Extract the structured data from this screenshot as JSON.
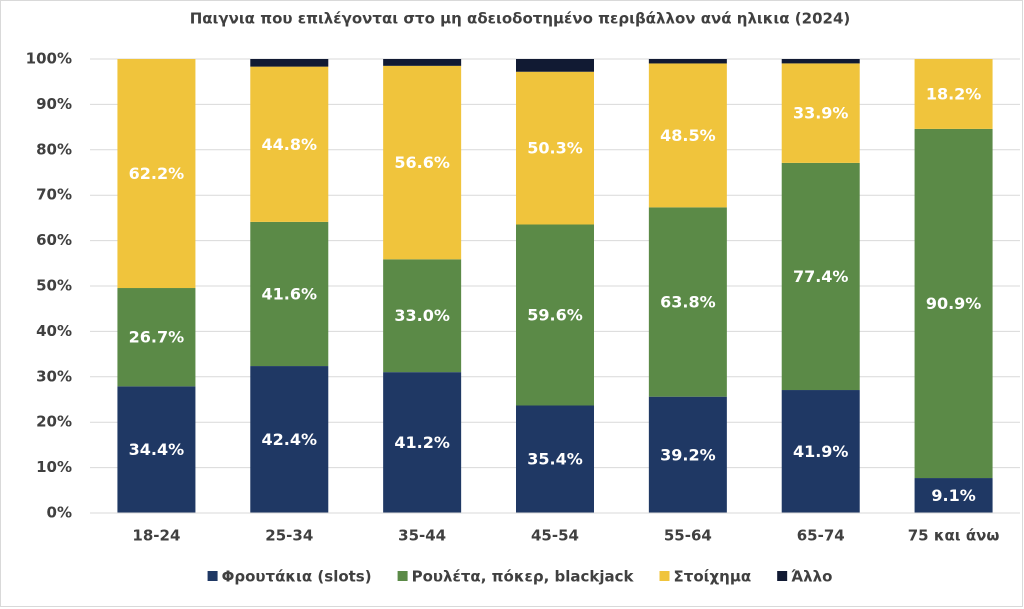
{
  "chart_data": {
    "type": "bar",
    "stacked": true,
    "normalized": true,
    "title": "Παιγνια που επιλέγονται στο μη αδειοδοτημένο περιβάλλον ανά ηλικια (2024)",
    "categories": [
      "18-24",
      "25-34",
      "35-44",
      "45-54",
      "55-64",
      "65-74",
      "75 και άνω"
    ],
    "series": [
      {
        "name": "Φρουτάκια (slots)",
        "color": "#1f3864",
        "values": [
          34.4,
          42.4,
          41.2,
          35.4,
          39.2,
          41.9,
          9.1
        ],
        "value_labels": [
          "34.4%",
          "42.4%",
          "41.2%",
          "35.4%",
          "39.2%",
          "41.9%",
          "9.1%"
        ]
      },
      {
        "name": "Ρουλέτα, πόκερ, blackjack",
        "color": "#5b8a47",
        "values": [
          26.7,
          41.6,
          33.0,
          59.6,
          63.8,
          77.4,
          90.9
        ],
        "value_labels": [
          "26.7%",
          "41.6%",
          "33.0%",
          "59.6%",
          "63.8%",
          "77.4%",
          "90.9%"
        ]
      },
      {
        "name": "Στοίχημα",
        "color": "#f0c43c",
        "values": [
          62.2,
          44.8,
          56.6,
          50.3,
          48.5,
          33.9,
          18.2
        ],
        "value_labels": [
          "62.2%",
          "44.8%",
          "56.6%",
          "50.3%",
          "48.5%",
          "33.9%",
          "18.2%"
        ]
      },
      {
        "name": "Άλλο",
        "color": "#111a33",
        "values": [
          0,
          2.2,
          2.0,
          4.2,
          1.5,
          1.5,
          0
        ]
      }
    ],
    "ylim": [
      0,
      100
    ],
    "yticks": [
      {
        "value": 0,
        "label": "0%"
      },
      {
        "value": 10,
        "label": "10%"
      },
      {
        "value": 20,
        "label": "20%"
      },
      {
        "value": 30,
        "label": "30%"
      },
      {
        "value": 40,
        "label": "40%"
      },
      {
        "value": 50,
        "label": "50%"
      },
      {
        "value": 60,
        "label": "60%"
      },
      {
        "value": 70,
        "label": "70%"
      },
      {
        "value": 80,
        "label": "80%"
      },
      {
        "value": 90,
        "label": "90%"
      },
      {
        "value": 100,
        "label": "100%"
      }
    ],
    "grid": true,
    "legend": "bottom"
  }
}
